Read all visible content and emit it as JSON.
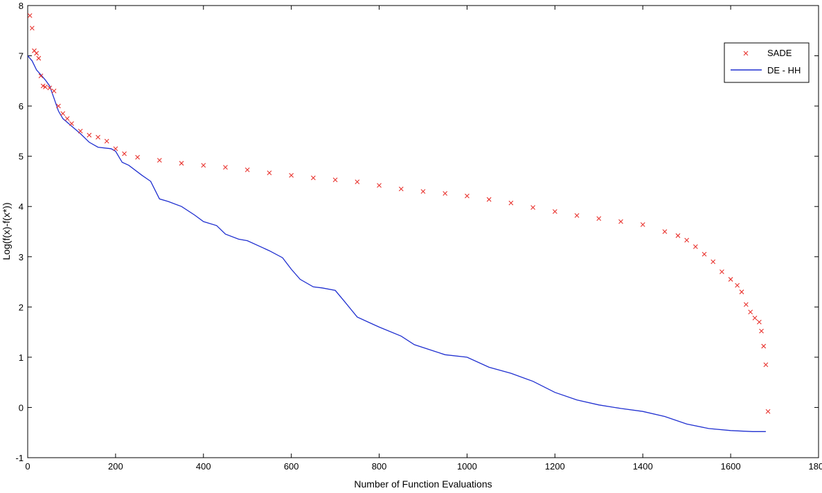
{
  "chart_data": {
    "type": "line",
    "title": "",
    "xlabel": "Number of Function Evaluations",
    "ylabel": "Log(f(x)-f(x*))",
    "xlim": [
      0,
      1800
    ],
    "ylim": [
      -1,
      8
    ],
    "xticks": [
      0,
      200,
      400,
      600,
      800,
      1000,
      1200,
      1400,
      1600,
      1800
    ],
    "yticks": [
      -1,
      0,
      1,
      2,
      3,
      4,
      5,
      6,
      7,
      8
    ],
    "grid": false,
    "legend_position": "top-right",
    "series": [
      {
        "name": "SADE",
        "style": "markers",
        "marker": "x",
        "color": "#e8322d",
        "x": [
          5,
          10,
          15,
          20,
          25,
          30,
          35,
          40,
          50,
          60,
          70,
          80,
          90,
          100,
          120,
          140,
          160,
          180,
          200,
          220,
          250,
          300,
          350,
          400,
          450,
          500,
          550,
          600,
          650,
          700,
          750,
          800,
          850,
          900,
          950,
          1000,
          1050,
          1100,
          1150,
          1200,
          1250,
          1300,
          1350,
          1400,
          1450,
          1480,
          1500,
          1520,
          1540,
          1560,
          1580,
          1600,
          1615,
          1625,
          1635,
          1645,
          1655,
          1665,
          1670,
          1675,
          1680,
          1685
        ],
        "y": [
          7.8,
          7.55,
          7.1,
          7.05,
          6.95,
          6.6,
          6.4,
          6.38,
          6.36,
          6.3,
          6.0,
          5.85,
          5.75,
          5.65,
          5.5,
          5.42,
          5.38,
          5.3,
          5.15,
          5.05,
          4.98,
          4.92,
          4.86,
          4.82,
          4.78,
          4.73,
          4.67,
          4.62,
          4.57,
          4.53,
          4.49,
          4.42,
          4.35,
          4.3,
          4.26,
          4.21,
          4.14,
          4.07,
          3.98,
          3.9,
          3.82,
          3.76,
          3.7,
          3.64,
          3.5,
          3.42,
          3.33,
          3.2,
          3.05,
          2.9,
          2.7,
          2.55,
          2.43,
          2.3,
          2.05,
          1.9,
          1.78,
          1.7,
          1.52,
          1.22,
          0.85,
          -0.08
        ]
      },
      {
        "name": "DE - HH",
        "style": "line",
        "color": "#1f2fd0",
        "x": [
          0,
          10,
          20,
          30,
          40,
          50,
          60,
          70,
          80,
          100,
          120,
          140,
          160,
          190,
          200,
          215,
          230,
          260,
          280,
          300,
          320,
          350,
          380,
          400,
          430,
          450,
          480,
          500,
          550,
          580,
          600,
          620,
          650,
          670,
          700,
          720,
          750,
          780,
          800,
          850,
          880,
          950,
          1000,
          1050,
          1100,
          1150,
          1200,
          1250,
          1300,
          1350,
          1400,
          1450,
          1500,
          1550,
          1600,
          1650,
          1680
        ],
        "y": [
          7.0,
          6.9,
          6.72,
          6.62,
          6.52,
          6.4,
          6.15,
          5.9,
          5.75,
          5.6,
          5.45,
          5.28,
          5.18,
          5.15,
          5.1,
          4.88,
          4.82,
          4.62,
          4.5,
          4.15,
          4.1,
          4.0,
          3.83,
          3.7,
          3.62,
          3.45,
          3.35,
          3.32,
          3.12,
          2.98,
          2.75,
          2.55,
          2.4,
          2.38,
          2.33,
          2.12,
          1.8,
          1.68,
          1.6,
          1.42,
          1.25,
          1.05,
          1.0,
          0.8,
          0.68,
          0.52,
          0.3,
          0.15,
          0.05,
          -0.02,
          -0.08,
          -0.18,
          -0.33,
          -0.42,
          -0.46,
          -0.48,
          -0.48
        ]
      }
    ]
  }
}
